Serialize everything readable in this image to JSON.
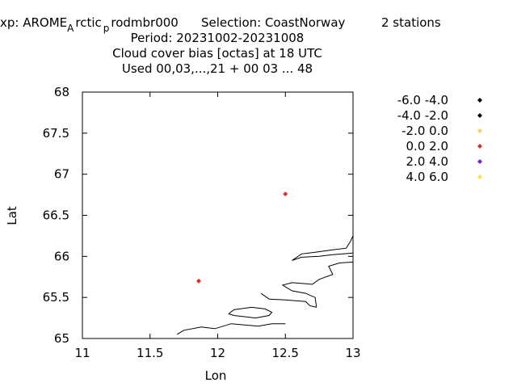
{
  "header": {
    "line1": "xp: AROME",
    "line1_sub1": "A",
    "line1_mid": "rctic",
    "line1_sub2": "p",
    "line1_rest": "rodmbr000",
    "selection": "Selection: CoastNorway",
    "stations": "2 stations",
    "period": "Period: 20231002-20231008",
    "variable": "Cloud cover bias [octas] at  18 UTC",
    "used": "Used  00,03,...,21  + 00 03 ... 48"
  },
  "chart_data": {
    "type": "scatter",
    "title": "Cloud cover bias [octas] at  18 UTC",
    "xlabel": "Lon",
    "ylabel": "Lat",
    "xlim": [
      11,
      13
    ],
    "ylim": [
      65,
      68
    ],
    "x_ticks": [
      "11",
      "11.5",
      "12",
      "12.5",
      "13"
    ],
    "y_ticks": [
      "65",
      "65.5",
      "66",
      "66.5",
      "67",
      "67.5",
      "68"
    ],
    "grid": false,
    "legend_position": "right",
    "legend": [
      {
        "label": "-6.0 -4.0",
        "color": "#000000"
      },
      {
        "label": "-4.0 -2.0",
        "color": "#000000"
      },
      {
        "label": "-2.0 0.0",
        "color": "#ffd24d"
      },
      {
        "label": "0.0 2.0",
        "color": "#d73027"
      },
      {
        "label": "2.0 4.0",
        "color": "#7b1fd6"
      },
      {
        "label": "4.0 6.0",
        "color": "#f5e642"
      }
    ],
    "points": [
      {
        "lon": 11.86,
        "lat": 65.7,
        "color": "#d73027"
      },
      {
        "lon": 12.5,
        "lat": 66.76,
        "color": "#d73027"
      }
    ],
    "coastline": [
      [
        [
          11.7,
          65.05
        ],
        [
          11.75,
          65.1
        ],
        [
          11.88,
          65.14
        ],
        [
          11.98,
          65.12
        ],
        [
          12.1,
          65.18
        ],
        [
          12.3,
          65.15
        ],
        [
          12.4,
          65.18
        ],
        [
          12.5,
          65.18
        ]
      ],
      [
        [
          12.08,
          65.3
        ],
        [
          12.12,
          65.35
        ],
        [
          12.25,
          65.38
        ],
        [
          12.35,
          65.36
        ],
        [
          12.4,
          65.32
        ],
        [
          12.38,
          65.28
        ],
        [
          12.28,
          65.25
        ],
        [
          12.12,
          65.28
        ],
        [
          12.08,
          65.3
        ]
      ],
      [
        [
          12.32,
          65.55
        ],
        [
          12.38,
          65.48
        ],
        [
          12.5,
          65.47
        ],
        [
          12.65,
          65.45
        ],
        [
          12.68,
          65.4
        ],
        [
          12.73,
          65.38
        ]
      ],
      [
        [
          12.73,
          65.38
        ],
        [
          12.72,
          65.5
        ],
        [
          12.65,
          65.55
        ],
        [
          12.55,
          65.58
        ],
        [
          12.48,
          65.65
        ],
        [
          12.55,
          65.68
        ],
        [
          12.7,
          65.66
        ],
        [
          12.75,
          65.72
        ],
        [
          12.85,
          65.78
        ],
        [
          12.82,
          65.88
        ],
        [
          12.9,
          65.92
        ],
        [
          13.0,
          65.93
        ]
      ],
      [
        [
          12.55,
          65.95
        ],
        [
          12.62,
          66.03
        ],
        [
          12.72,
          66.05
        ],
        [
          12.85,
          66.08
        ],
        [
          12.95,
          66.1
        ],
        [
          12.98,
          66.18
        ],
        [
          13.0,
          66.25
        ]
      ],
      [
        [
          13.0,
          66.04
        ],
        [
          12.85,
          66.02
        ],
        [
          12.75,
          66.0
        ],
        [
          12.62,
          65.99
        ],
        [
          12.55,
          65.95
        ]
      ]
    ]
  }
}
